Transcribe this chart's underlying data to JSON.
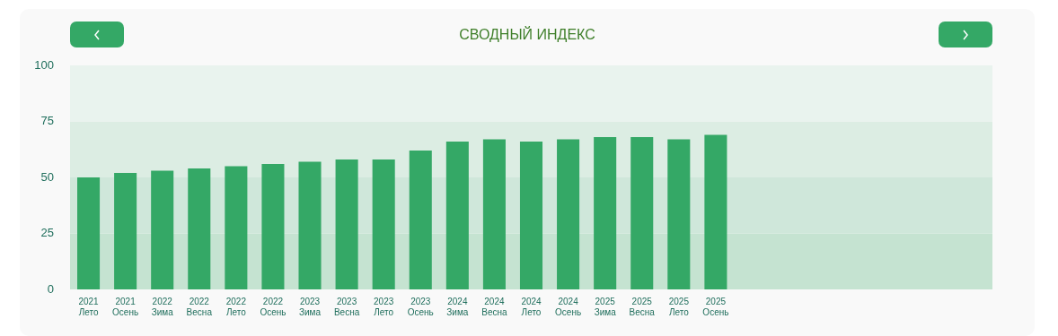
{
  "chart_data": {
    "type": "bar",
    "title": "СВОДНЫЙ ИНДЕКС",
    "categories": [
      "2021\nЛето",
      "2021\nОсень",
      "2022\nЗима",
      "2022\nВесна",
      "2022\nЛето",
      "2022\nОсень",
      "2023\nЗима",
      "2023\nВесна",
      "2023\nЛето",
      "2023\nОсень",
      "2024\nЗима",
      "2024\nВесна",
      "2024\nЛето",
      "2024\nОсень",
      "2025\nЗима",
      "2025\nВесна",
      "2025\nЛето",
      "2025\nОсень",
      null,
      null,
      null,
      null,
      null,
      null,
      null
    ],
    "values": [
      50,
      52,
      53,
      54,
      55,
      56,
      57,
      58,
      58,
      62,
      66,
      67,
      66,
      67,
      68,
      68,
      67,
      69,
      null,
      null,
      null,
      null,
      null,
      null,
      null
    ],
    "color": "#34a866",
    "ylim": [
      0,
      100
    ],
    "yticks": [
      0,
      25,
      50,
      75,
      100
    ],
    "grid": false,
    "legend": false,
    "bands": [
      {
        "axis": "y",
        "from": 0,
        "to": 25,
        "color": "#c5e3d1"
      },
      {
        "axis": "y",
        "from": 25,
        "to": 50,
        "color": "#cfe7da"
      },
      {
        "axis": "y",
        "from": 50,
        "to": 75,
        "color": "#dcede3"
      },
      {
        "axis": "y",
        "from": 75,
        "to": 100,
        "color": "#e9f3ee"
      }
    ]
  }
}
